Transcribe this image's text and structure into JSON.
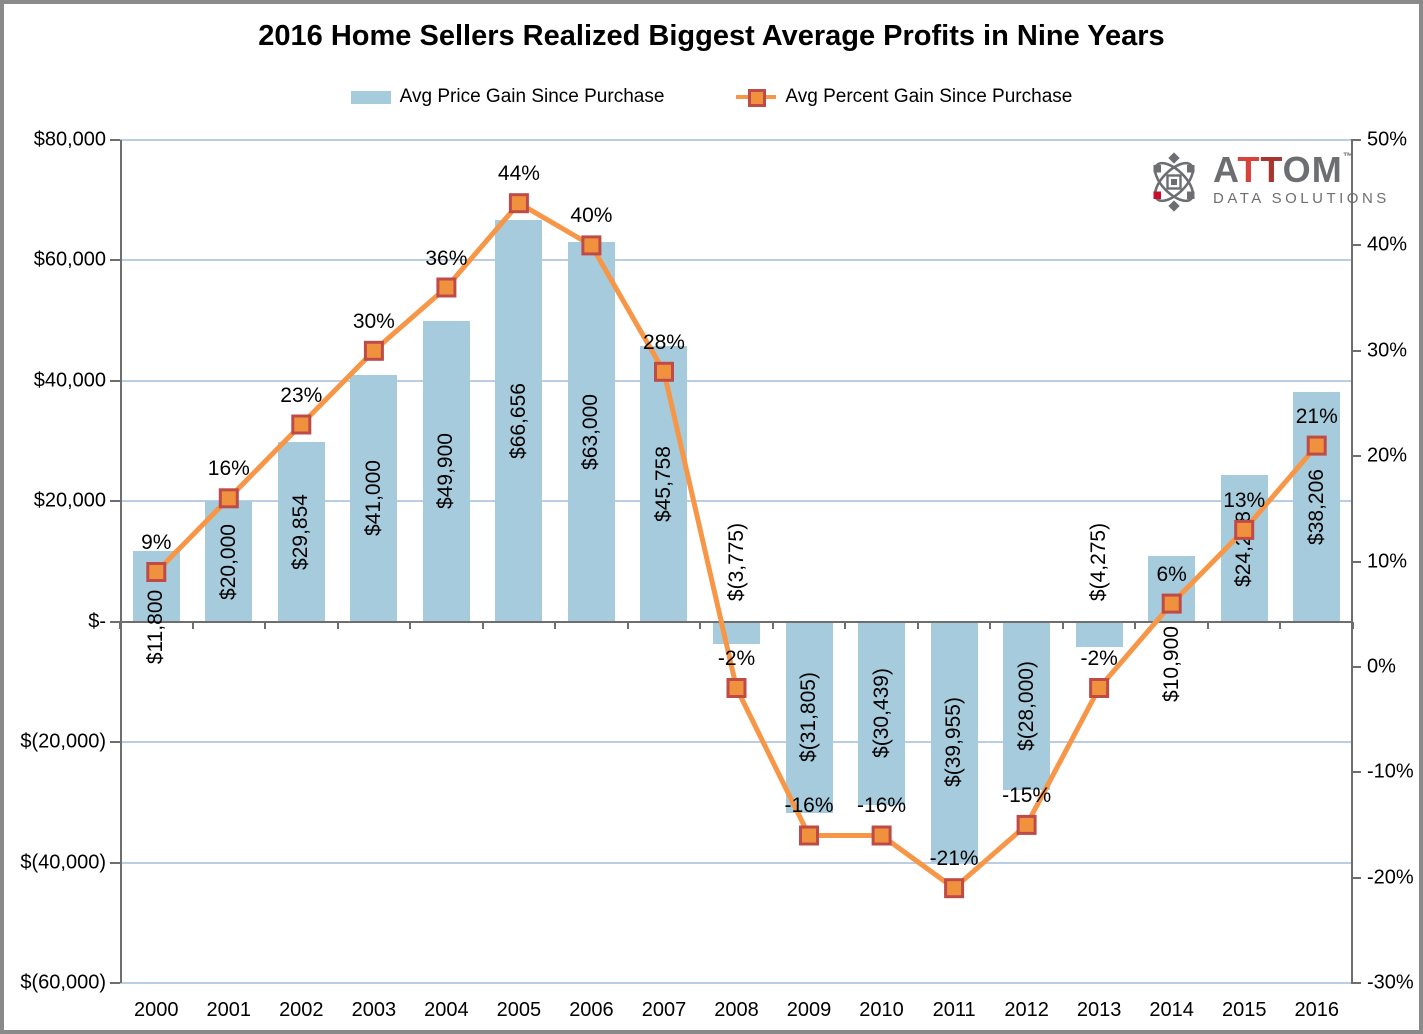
{
  "title": "2016 Home Sellers Realized Biggest Average Profits in Nine Years",
  "legend": [
    {
      "label": "Avg Price Gain Since Purchase",
      "type": "bar"
    },
    {
      "label": "Avg Percent Gain Since Purchase",
      "type": "line"
    }
  ],
  "logo": {
    "brand_letters": [
      {
        "ch": "A",
        "color": "#6D6E71"
      },
      {
        "ch": "T",
        "color": "#D8423D"
      },
      {
        "ch": "T",
        "color": "#A93531"
      },
      {
        "ch": "O",
        "color": "#6D6E71"
      },
      {
        "ch": "M",
        "color": "#6D6E71"
      }
    ],
    "tm": "™",
    "sub": "DATA SOLUTIONS"
  },
  "colors": {
    "bar": "#A5CBDC",
    "line": "#F79646",
    "marker_fill": "#F0913D",
    "marker_border": "#BE4B48",
    "gridline": "#B9CDE5",
    "axis": "#6E6E6E",
    "text": "#000000",
    "frame": "#8A8A8A",
    "logo_gray": "#6D6E71",
    "logo_red": "#C8102E"
  },
  "chart_data": {
    "type": "bar+line combo",
    "title": "2016 Home Sellers Realized Biggest Average Profits in Nine Years",
    "categories": [
      "2000",
      "2001",
      "2002",
      "2003",
      "2004",
      "2005",
      "2006",
      "2007",
      "2008",
      "2009",
      "2010",
      "2011",
      "2012",
      "2013",
      "2014",
      "2015",
      "2016"
    ],
    "series": [
      {
        "name": "Avg Price Gain Since Purchase",
        "type": "bar",
        "axis": "left",
        "values": [
          11800,
          20000,
          29854,
          41000,
          49900,
          66656,
          63000,
          45758,
          -3775,
          -31805,
          -30439,
          -39955,
          -28000,
          -4275,
          10900,
          24288,
          38206
        ],
        "labels": [
          "$11,800",
          "$20,000",
          "$29,854",
          "$41,000",
          "$49,900",
          "$66,656",
          "$63,000",
          "$45,758",
          "$(3,775)",
          "$(31,805)",
          "$(30,439)",
          "$(39,955)",
          "$(28,000)",
          "$(4,275)",
          "$10,900",
          "$24,288",
          "$38,206"
        ],
        "label_placement": [
          "axis",
          "center",
          "center",
          "center",
          "center",
          "center",
          "center",
          "center",
          "above-axis",
          "center",
          "center",
          "center",
          "center",
          "above-axis",
          "below-axis",
          "center",
          "center"
        ]
      },
      {
        "name": "Avg Percent Gain Since Purchase",
        "type": "line",
        "axis": "right",
        "values": [
          9,
          16,
          23,
          30,
          36,
          44,
          40,
          28,
          -2,
          -16,
          -16,
          -21,
          -15,
          -2,
          6,
          13,
          21
        ],
        "labels": [
          "9%",
          "16%",
          "23%",
          "30%",
          "36%",
          "44%",
          "40%",
          "28%",
          "-2%",
          "-16%",
          "-16%",
          "-21%",
          "-15%",
          "-2%",
          "6%",
          "13%",
          "21%"
        ]
      }
    ],
    "left_axis": {
      "title": "",
      "min": -60000,
      "max": 80000,
      "step": 20000,
      "ticks": [
        "$80,000",
        "$60,000",
        "$40,000",
        "$20,000",
        "$-",
        "$(20,000)",
        "$(40,000)",
        "$(60,000)"
      ]
    },
    "right_axis": {
      "title": "",
      "min": -30,
      "max": 50,
      "step": 10,
      "ticks": [
        "50%",
        "40%",
        "30%",
        "20%",
        "10%",
        "0%",
        "-10%",
        "-20%",
        "-30%"
      ]
    },
    "grid": true,
    "legend_position": "top"
  }
}
